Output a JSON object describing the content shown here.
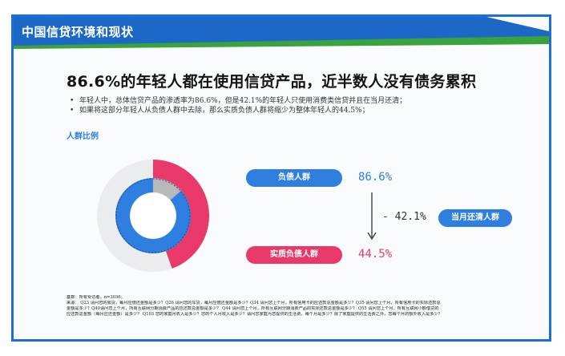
{
  "header": {
    "title": "中国信贷环境和现状"
  },
  "headline": "86.6%的年轻人都在使用信贷产品，近半数人没有债务累积",
  "bullets": [
    "年轻人中，总体信贷产品的渗透率为86.6%，但是42.1%的年轻人只使用消费类信贷并且在当月还清；",
    "如果将这部分年轻人从负债人群中去除，那么实质负债人群将缩少为整体年轻人的44.5%；"
  ],
  "section_label": "人群比例",
  "donut": {
    "outer_share": 0.445,
    "inner_share": 0.866,
    "colors": {
      "blue": "#2e7fe0",
      "red": "#e8396a",
      "grey": "#d9dadc",
      "light": "#ebecee",
      "darkgrey": "#b8b9bb"
    }
  },
  "labels": {
    "debt_group": "负债人群",
    "debt_group_value": "86.6%",
    "delta": "- 42.1%",
    "paid_off_group": "当月还清人群",
    "real_debt_group": "实质负债人群",
    "real_debt_value": "44.5%"
  },
  "footnotes": {
    "base": "基数：所有受访者，n=3036；",
    "source_1": "来源：  Q23 请问您的房贷，每月应偿还金额是多少？Q26 请问您的车贷，每月应偿还金额是多少？Q34 请问您上个月，所有信用卡的应还款总金额是多少？Q35 请问您上个月，所有信用卡的实际还款总",
    "source_2": "金额是多少？Q40请问您上个月，所有互联网分期消费产品的应还款总金额是多少？ Q44 请问您上个月，所有互联网分期消费产品的实际还款总金额是多少？ Q55 请问您上个月，所有互联网小额借贷的",
    "source_3": "应还款总金额（每月应还金额）是多少？ Q103 您的家庭月收入是多少？您的个人月收入是多少？请问您家庭为您提供的生活费，每个月是多少？除了家庭提供的生活费之外，您每个月的额外收入是多少？"
  }
}
